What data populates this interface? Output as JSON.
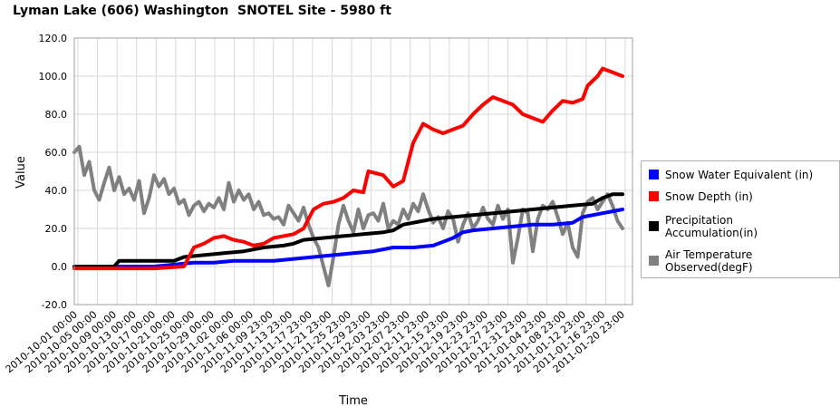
{
  "chart_data": {
    "type": "line",
    "title": "Lyman Lake (606) Washington  SNOTEL Site - 5980 ft",
    "xlabel": "Time",
    "ylabel": "Value",
    "ylim": [
      -20,
      120
    ],
    "yticks": [
      "120.0",
      "100.0",
      "80.0",
      "60.0",
      "40.0",
      "20.0",
      "0.0",
      "-20.0"
    ],
    "x_range_days": [
      0,
      112
    ],
    "x_tick_labels": [
      "2010-10-01 00:00",
      "2010-10-05 00:00",
      "2010-10-09 00:00",
      "2010-10-13 00:00",
      "2010-10-17 00:00",
      "2010-10-21 00:00",
      "2010-10-25 00:00",
      "2010-10-29 00:00",
      "2010-11-02 00:00",
      "2010-11-06 00:00",
      "2010-11-09 23:00",
      "2010-11-13 23:00",
      "2010-11-17 23:00",
      "2010-11-21 23:00",
      "2010-11-25 23:00",
      "2010-11-29 23:00",
      "2010-12-03 23:00",
      "2010-12-07 23:00",
      "2010-12-11 23:00",
      "2010-12-15 23:00",
      "2010-12-19 23:00",
      "2010-12-23 23:00",
      "2010-12-27 23:00",
      "2010-12-31 23:00",
      "2011-01-04 23:00",
      "2011-01-08 23:00",
      "2011-01-12 23:00",
      "2011-01-16 23:00",
      "2011-01-20 23:00"
    ],
    "grid": true,
    "legend_position": "right",
    "series": [
      {
        "name": "Snow Water Equivalent (in)",
        "color": "#0000ff",
        "points": [
          [
            0,
            0
          ],
          [
            10,
            0
          ],
          [
            16,
            0
          ],
          [
            20,
            1
          ],
          [
            24,
            2
          ],
          [
            28,
            2
          ],
          [
            32,
            3
          ],
          [
            36,
            3
          ],
          [
            40,
            3
          ],
          [
            44,
            4
          ],
          [
            48,
            5
          ],
          [
            52,
            6
          ],
          [
            56,
            7
          ],
          [
            60,
            8
          ],
          [
            64,
            10
          ],
          [
            68,
            10
          ],
          [
            72,
            11
          ],
          [
            74,
            13
          ],
          [
            76,
            15
          ],
          [
            78,
            18
          ],
          [
            80,
            19
          ],
          [
            84,
            20
          ],
          [
            88,
            21
          ],
          [
            92,
            22
          ],
          [
            96,
            22
          ],
          [
            100,
            23
          ],
          [
            102,
            26
          ],
          [
            104,
            27
          ],
          [
            106,
            28
          ],
          [
            108,
            29
          ],
          [
            110,
            30
          ]
        ]
      },
      {
        "name": "Snow Depth (in)",
        "color": "#ff0000",
        "points": [
          [
            0,
            -1
          ],
          [
            10,
            -1
          ],
          [
            16,
            -1
          ],
          [
            22,
            0
          ],
          [
            23,
            5
          ],
          [
            24,
            10
          ],
          [
            26,
            12
          ],
          [
            28,
            15
          ],
          [
            30,
            16
          ],
          [
            32,
            14
          ],
          [
            34,
            13
          ],
          [
            36,
            11
          ],
          [
            38,
            12
          ],
          [
            40,
            15
          ],
          [
            44,
            17
          ],
          [
            46,
            20
          ],
          [
            48,
            30
          ],
          [
            50,
            33
          ],
          [
            52,
            34
          ],
          [
            54,
            36
          ],
          [
            56,
            40
          ],
          [
            58,
            39
          ],
          [
            59,
            50
          ],
          [
            62,
            48
          ],
          [
            64,
            42
          ],
          [
            66,
            45
          ],
          [
            67,
            55
          ],
          [
            68,
            65
          ],
          [
            70,
            75
          ],
          [
            72,
            72
          ],
          [
            74,
            70
          ],
          [
            76,
            72
          ],
          [
            78,
            74
          ],
          [
            80,
            80
          ],
          [
            82,
            85
          ],
          [
            84,
            89
          ],
          [
            86,
            87
          ],
          [
            88,
            85
          ],
          [
            90,
            80
          ],
          [
            92,
            78
          ],
          [
            94,
            76
          ],
          [
            96,
            82
          ],
          [
            98,
            87
          ],
          [
            100,
            86
          ],
          [
            102,
            88
          ],
          [
            103,
            95
          ],
          [
            105,
            100
          ],
          [
            106,
            104
          ],
          [
            108,
            102
          ],
          [
            110,
            100
          ]
        ]
      },
      {
        "name": "Precipitation Accumulation(in)",
        "color": "#000000",
        "points": [
          [
            0,
            0
          ],
          [
            8,
            0
          ],
          [
            9,
            3
          ],
          [
            16,
            3
          ],
          [
            20,
            3
          ],
          [
            22,
            5
          ],
          [
            26,
            6
          ],
          [
            30,
            7
          ],
          [
            34,
            8
          ],
          [
            38,
            10
          ],
          [
            42,
            11
          ],
          [
            44,
            12
          ],
          [
            46,
            14
          ],
          [
            50,
            15
          ],
          [
            54,
            16
          ],
          [
            58,
            17
          ],
          [
            62,
            18
          ],
          [
            64,
            19
          ],
          [
            66,
            22
          ],
          [
            68,
            23
          ],
          [
            70,
            24
          ],
          [
            72,
            25
          ],
          [
            76,
            26
          ],
          [
            80,
            27
          ],
          [
            84,
            28
          ],
          [
            88,
            29
          ],
          [
            92,
            30
          ],
          [
            96,
            31
          ],
          [
            100,
            32
          ],
          [
            104,
            33
          ],
          [
            106,
            36
          ],
          [
            108,
            38
          ],
          [
            110,
            38
          ]
        ]
      },
      {
        "name": "Air Temperature Observed(degF)",
        "color": "#808080",
        "points": [
          [
            0,
            60
          ],
          [
            1,
            63
          ],
          [
            2,
            48
          ],
          [
            3,
            55
          ],
          [
            4,
            40
          ],
          [
            5,
            35
          ],
          [
            6,
            44
          ],
          [
            7,
            52
          ],
          [
            8,
            40
          ],
          [
            9,
            47
          ],
          [
            10,
            38
          ],
          [
            11,
            41
          ],
          [
            12,
            35
          ],
          [
            13,
            45
          ],
          [
            14,
            28
          ],
          [
            15,
            36
          ],
          [
            16,
            48
          ],
          [
            17,
            42
          ],
          [
            18,
            46
          ],
          [
            19,
            38
          ],
          [
            20,
            41
          ],
          [
            21,
            33
          ],
          [
            22,
            35
          ],
          [
            23,
            27
          ],
          [
            24,
            32
          ],
          [
            25,
            34
          ],
          [
            26,
            29
          ],
          [
            27,
            33
          ],
          [
            28,
            31
          ],
          [
            29,
            36
          ],
          [
            30,
            30
          ],
          [
            31,
            44
          ],
          [
            32,
            34
          ],
          [
            33,
            40
          ],
          [
            34,
            35
          ],
          [
            35,
            38
          ],
          [
            36,
            30
          ],
          [
            37,
            34
          ],
          [
            38,
            27
          ],
          [
            39,
            28
          ],
          [
            40,
            25
          ],
          [
            41,
            26
          ],
          [
            42,
            22
          ],
          [
            43,
            32
          ],
          [
            44,
            28
          ],
          [
            45,
            24
          ],
          [
            46,
            31
          ],
          [
            47,
            22
          ],
          [
            48,
            15
          ],
          [
            49,
            10
          ],
          [
            50,
            0
          ],
          [
            51,
            -10
          ],
          [
            52,
            5
          ],
          [
            53,
            22
          ],
          [
            54,
            32
          ],
          [
            55,
            24
          ],
          [
            56,
            18
          ],
          [
            57,
            30
          ],
          [
            58,
            20
          ],
          [
            59,
            27
          ],
          [
            60,
            28
          ],
          [
            61,
            24
          ],
          [
            62,
            33
          ],
          [
            63,
            20
          ],
          [
            64,
            24
          ],
          [
            65,
            22
          ],
          [
            66,
            30
          ],
          [
            67,
            25
          ],
          [
            68,
            33
          ],
          [
            69,
            29
          ],
          [
            70,
            38
          ],
          [
            71,
            30
          ],
          [
            72,
            23
          ],
          [
            73,
            26
          ],
          [
            74,
            20
          ],
          [
            75,
            29
          ],
          [
            76,
            25
          ],
          [
            77,
            13
          ],
          [
            78,
            22
          ],
          [
            79,
            28
          ],
          [
            80,
            20
          ],
          [
            81,
            24
          ],
          [
            82,
            31
          ],
          [
            83,
            25
          ],
          [
            84,
            22
          ],
          [
            85,
            32
          ],
          [
            86,
            25
          ],
          [
            87,
            30
          ],
          [
            88,
            2
          ],
          [
            89,
            15
          ],
          [
            90,
            30
          ],
          [
            91,
            28
          ],
          [
            92,
            8
          ],
          [
            93,
            25
          ],
          [
            94,
            32
          ],
          [
            95,
            30
          ],
          [
            96,
            34
          ],
          [
            97,
            26
          ],
          [
            98,
            17
          ],
          [
            99,
            23
          ],
          [
            100,
            10
          ],
          [
            101,
            5
          ],
          [
            102,
            28
          ],
          [
            103,
            34
          ],
          [
            104,
            36
          ],
          [
            105,
            30
          ],
          [
            106,
            34
          ],
          [
            107,
            38
          ],
          [
            108,
            32
          ],
          [
            109,
            24
          ],
          [
            110,
            20
          ]
        ]
      }
    ]
  }
}
